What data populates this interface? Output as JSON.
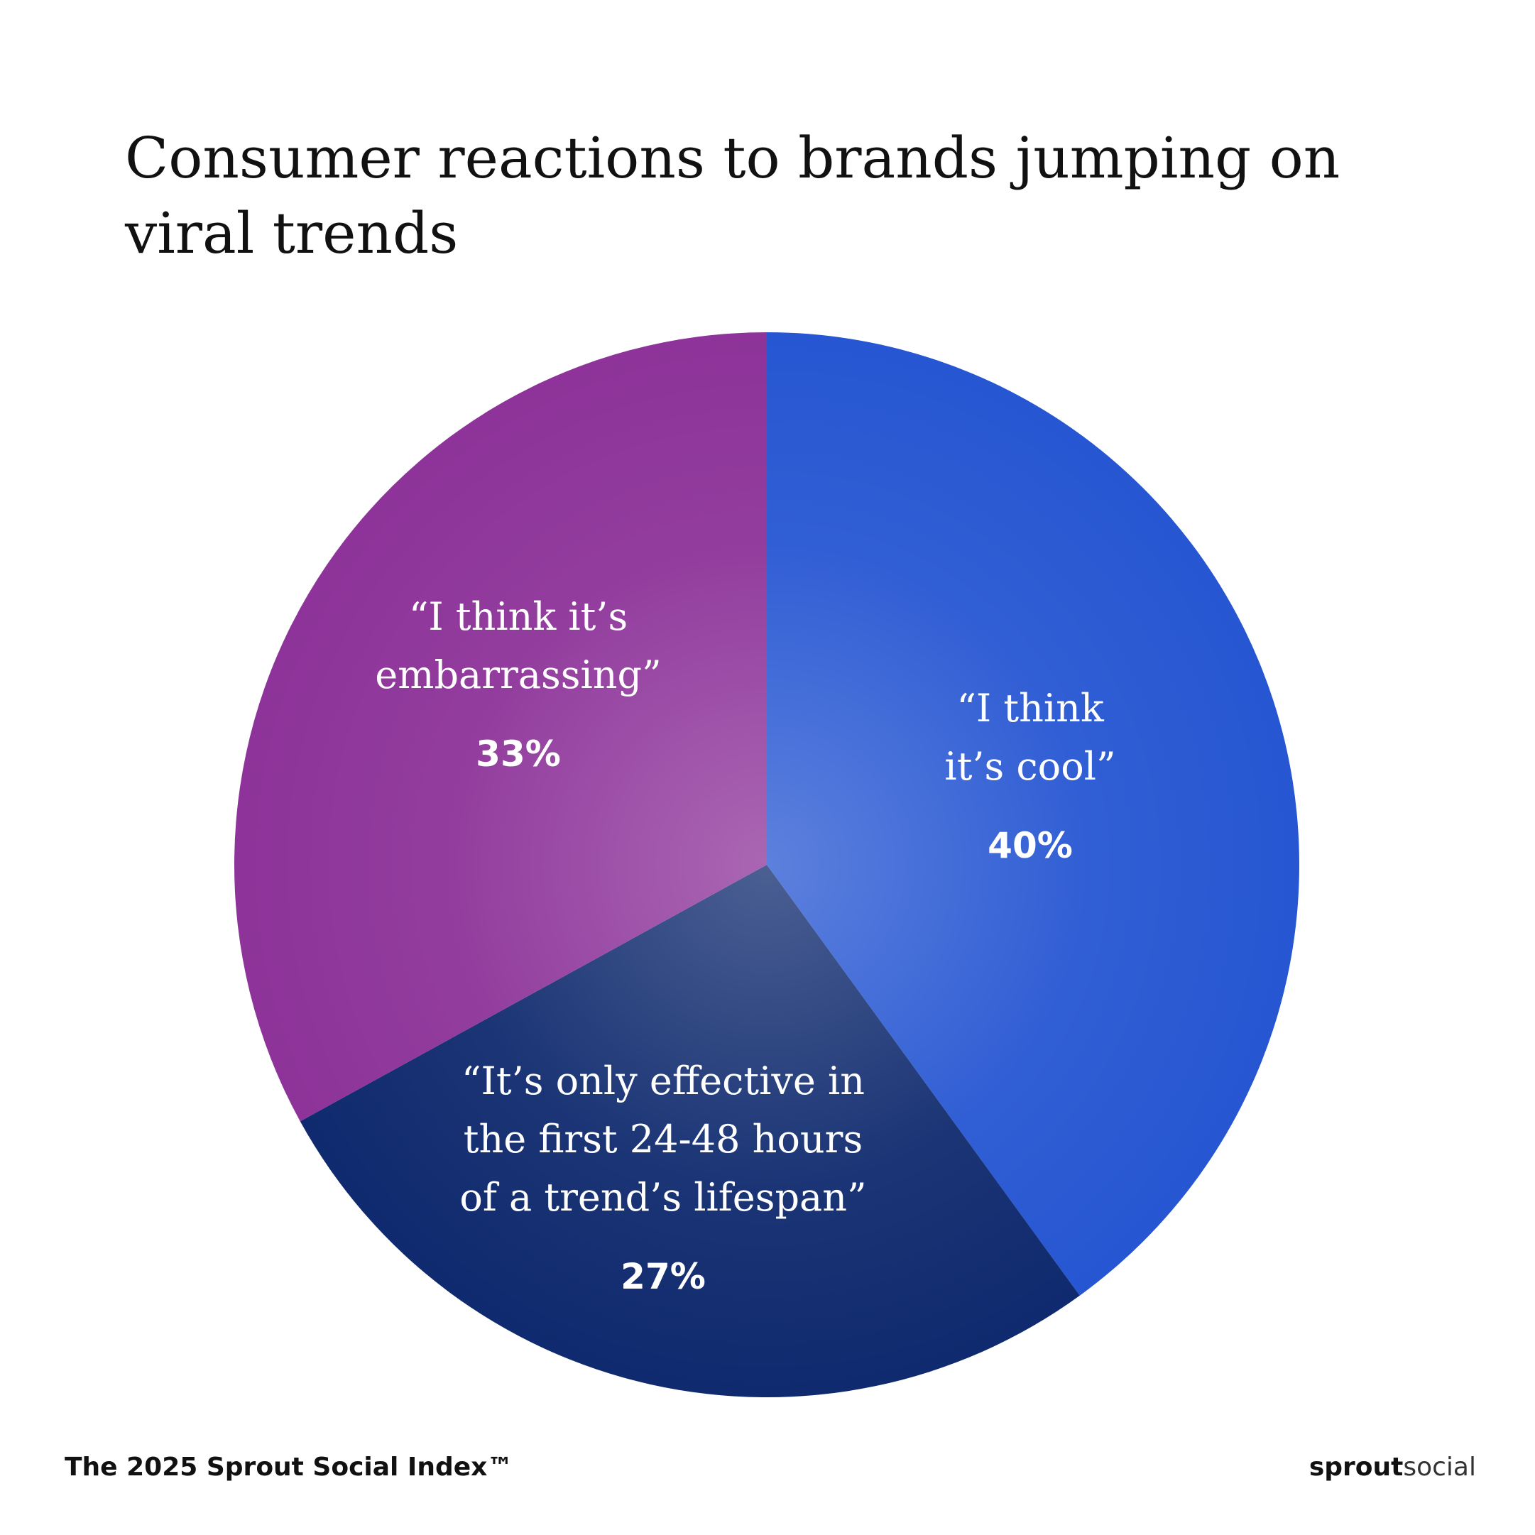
{
  "chart_data": {
    "type": "pie",
    "title": "Consumer reactions to brands jumping on viral trends",
    "categories": [
      [
        "“I think",
        "it’s cool”"
      ],
      [
        "“It’s only effective in",
        "the first 24-48 hours",
        "of a trend’s lifespan”"
      ],
      [
        "“I think it’s",
        "embarrassing”"
      ]
    ],
    "values": [
      40,
      27,
      33
    ],
    "value_labels": [
      "40%",
      "27%",
      "33%"
    ],
    "colors": [
      "#2656d2",
      "#0f2a6e",
      "#8d3399"
    ]
  },
  "footer": {
    "source": "The 2025 Sprout Social Index™",
    "logo": [
      "sprout",
      "social"
    ]
  }
}
